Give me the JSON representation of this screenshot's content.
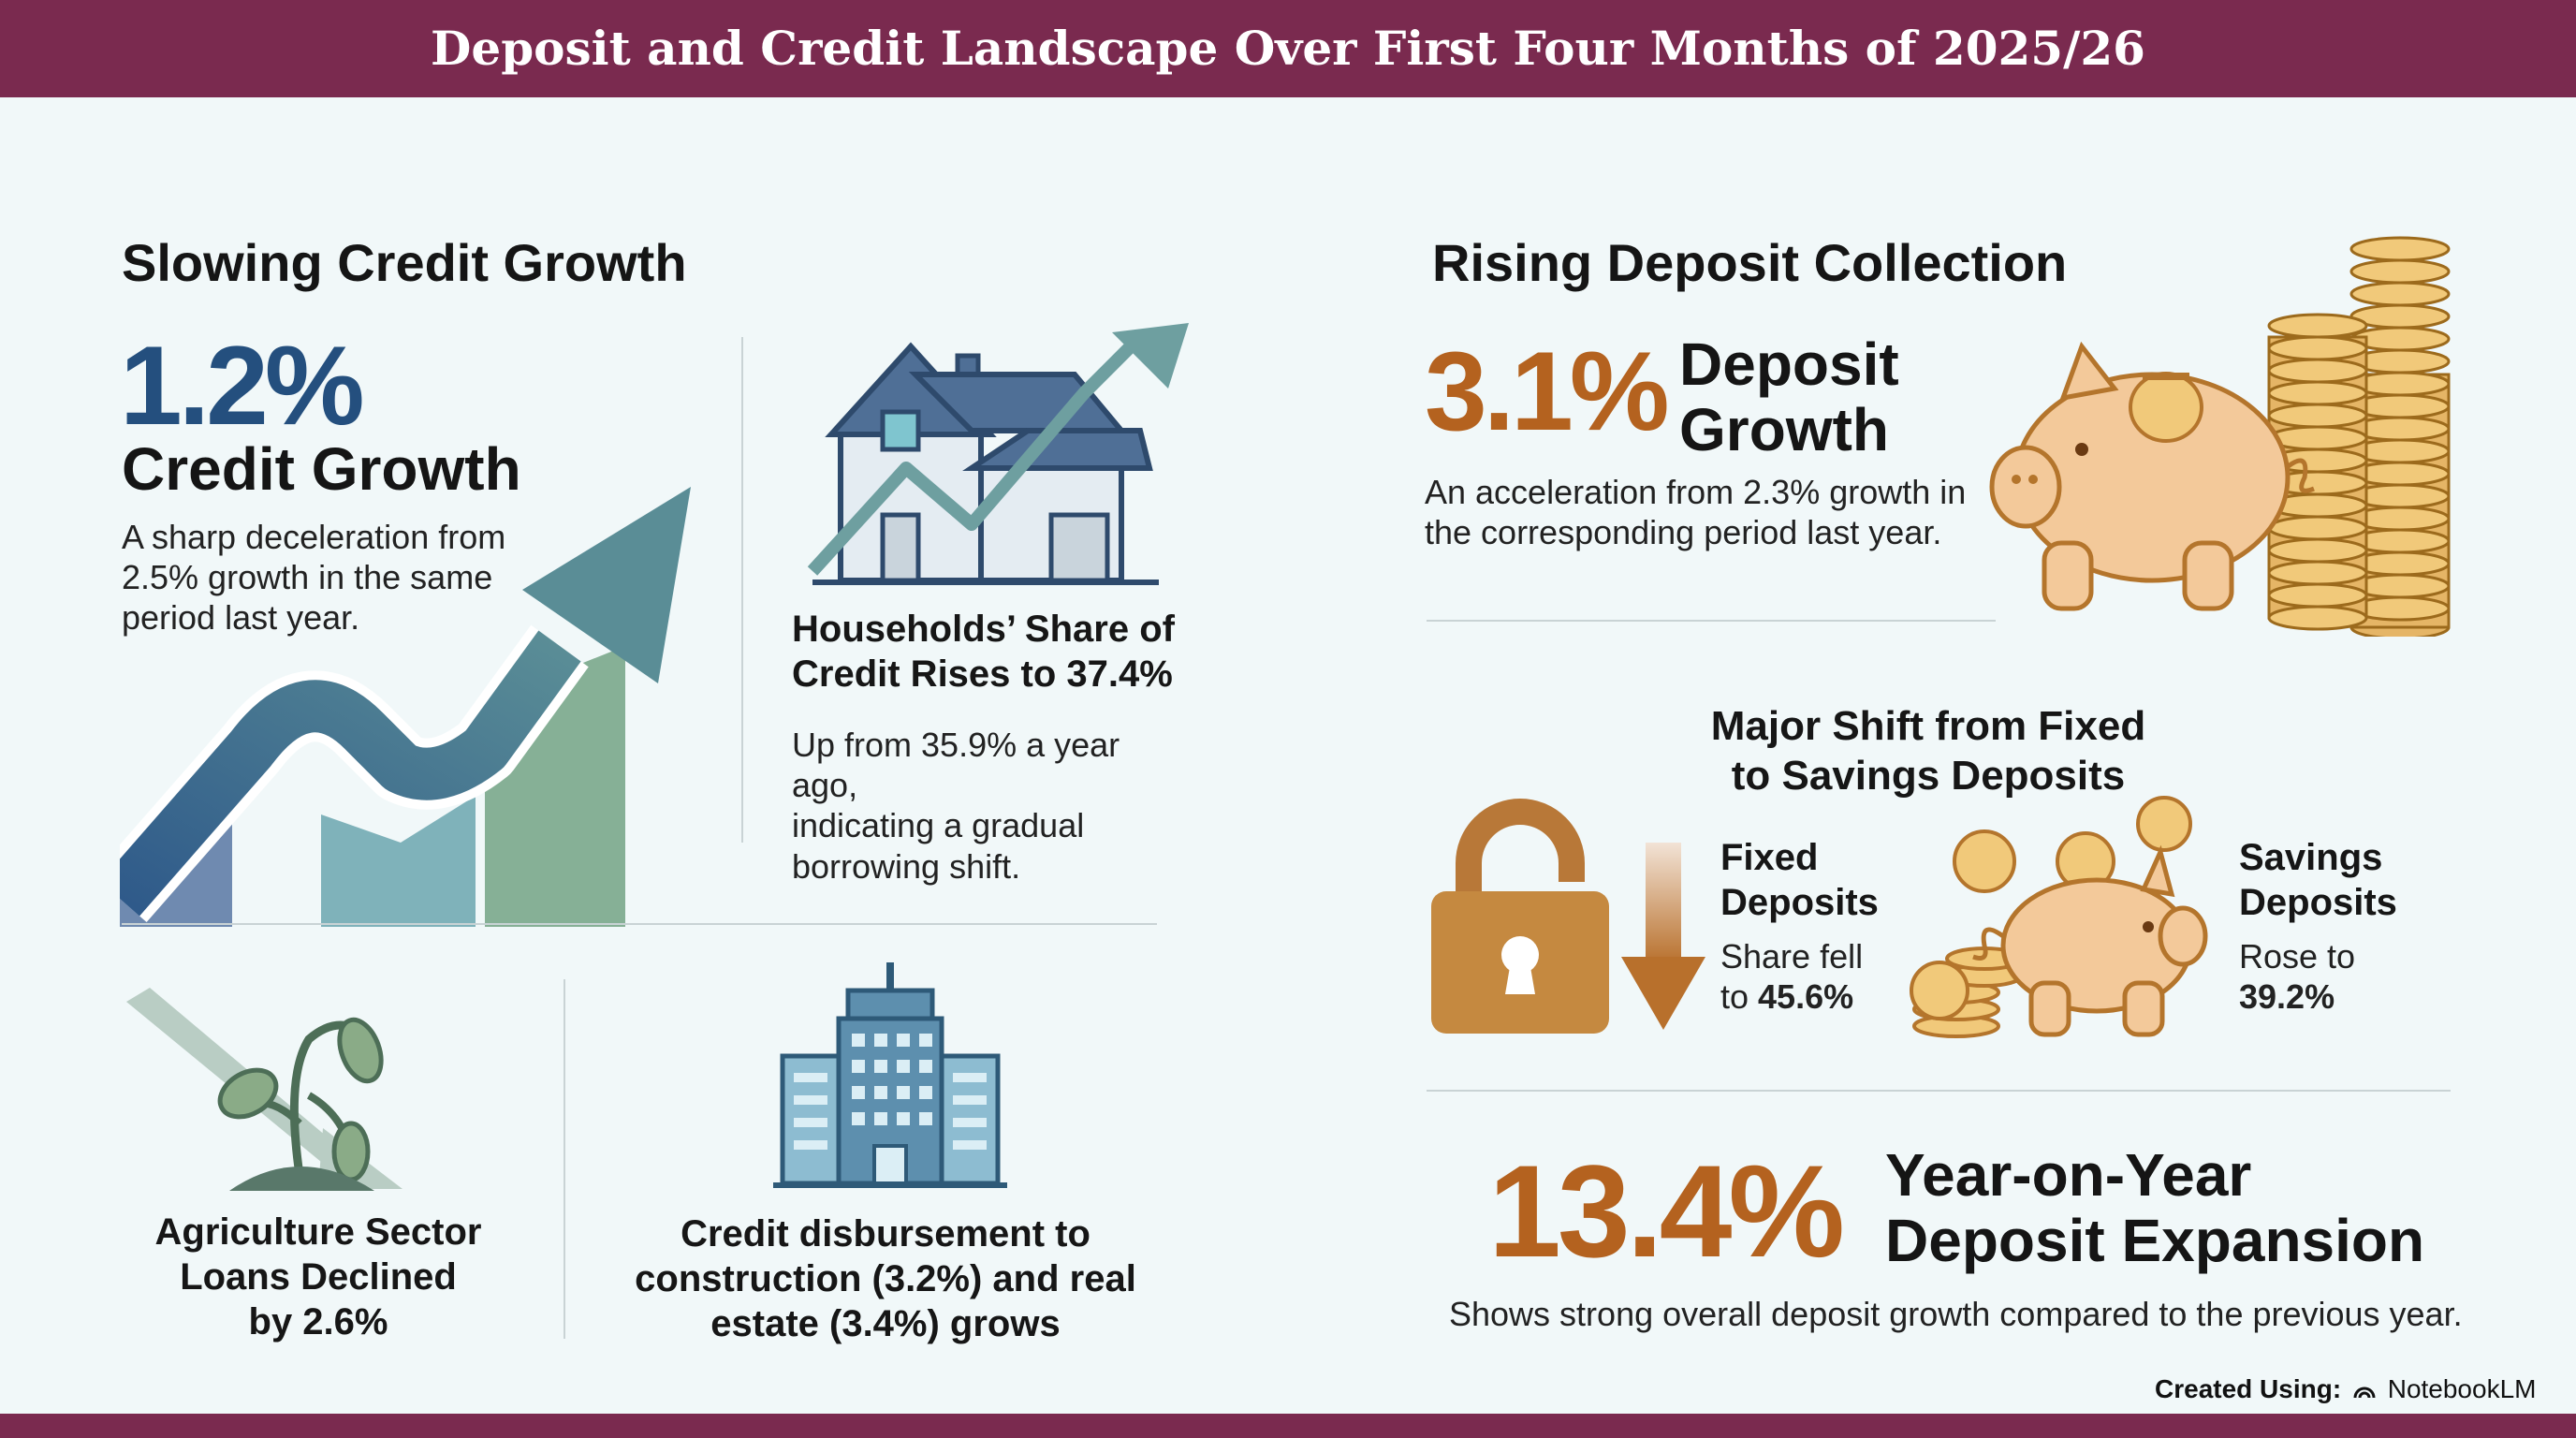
{
  "header": {
    "title": "Deposit and Credit Landscape Over First Four Months of 2025/26"
  },
  "credit": {
    "section_title": "Slowing Credit Growth",
    "growth_value": "1.2%",
    "growth_label": "Credit Growth",
    "growth_note": [
      "A sharp deceleration from",
      "2.5% growth in the same",
      "period last year."
    ],
    "households_title": [
      "Households’ Share of",
      "Credit Rises to 37.4%"
    ],
    "households_note": [
      "Up from 35.9% a year ago,",
      "indicating a gradual",
      "borrowing shift."
    ],
    "agriculture_title": [
      "Agriculture Sector",
      "Loans Declined",
      "by 2.6%"
    ],
    "construction_title": [
      "Credit disbursement to",
      "construction (3.2%) and real",
      "estate (3.4%) grows"
    ]
  },
  "deposit": {
    "section_title": "Rising Deposit Collection",
    "growth_value": "3.1%",
    "growth_label": [
      "Deposit",
      "Growth"
    ],
    "growth_note": [
      "An acceleration from 2.3% growth in",
      "the corresponding period last year."
    ],
    "shift_title": [
      "Major Shift from Fixed",
      "to Savings Deposits"
    ],
    "fixed_title": [
      "Fixed",
      "Deposits"
    ],
    "fixed_note": [
      "Share fell",
      "to "
    ],
    "fixed_value": "45.6%",
    "savings_title": [
      "Savings",
      "Deposits"
    ],
    "savings_note": "Rose to",
    "savings_value": "39.2%",
    "yoy_value": "13.4%",
    "yoy_label": [
      "Year-on-Year",
      "Deposit Expansion"
    ],
    "yoy_note": "Shows strong overall deposit growth compared to the previous year."
  },
  "footer": {
    "created_label": "Created Using:",
    "brand": "NotebookLM"
  },
  "colors": {
    "header_bg": "#7a2a4f",
    "credit_blue": "#244f7e",
    "deposit_orange": "#b4621f",
    "background": "#f1f8f9"
  },
  "icons": [
    "rising-arrow-chart-icon",
    "house-with-arrow-icon",
    "wilting-plant-icon",
    "office-building-icon",
    "piggy-bank-icon",
    "coin-stack-icon",
    "padlock-icon",
    "down-arrow-icon",
    "notebooklm-logo-icon"
  ]
}
